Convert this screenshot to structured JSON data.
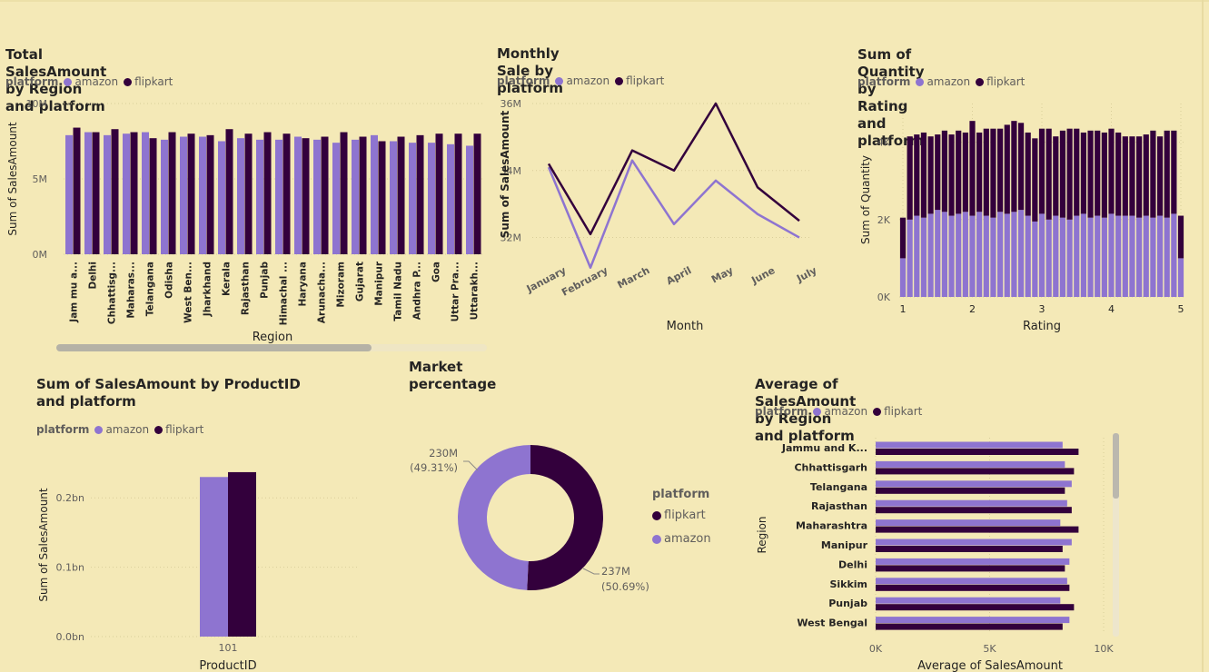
{
  "colors": {
    "amazon": "#8E74D0",
    "flipkart": "#33003C",
    "background": "#F4E9B7"
  },
  "legend_title": "platform",
  "legend_items": [
    "amazon",
    "flipkart"
  ],
  "charts": {
    "region_total": {
      "title": "Total SalesAmount by Region and platform"
    },
    "monthly": {
      "title": "Monthly Sale by platform"
    },
    "rating": {
      "title": "Sum of Quantity by Rating and platform"
    },
    "product": {
      "title": "Sum of SalesAmount by ProductID and platform"
    },
    "market": {
      "title": "Market percentage",
      "legend_items": [
        "flipkart",
        "amazon"
      ]
    },
    "avg_region": {
      "title": "Average of SalesAmount by Region and platform"
    }
  },
  "chart_data": [
    {
      "id": "region_total",
      "type": "bar",
      "title": "Total SalesAmount by Region and platform",
      "xlabel": "Region",
      "ylabel": "Sum of SalesAmount",
      "ylim": [
        0,
        10000000
      ],
      "yticks": [
        0,
        5000000,
        10000000
      ],
      "ytick_labels": [
        "0M",
        "5M",
        "10M"
      ],
      "categories": [
        "Jam mu a...",
        "Delhi",
        "Chhattisg...",
        "Maharas...",
        "Telangana",
        "Odisha",
        "West Ben...",
        "Jharkhand",
        "Kerala",
        "Rajasthan",
        "Punjab",
        "Himachal ...",
        "Haryana",
        "Arunacha...",
        "Mizoram",
        "Gujarat",
        "Manipur",
        "Tamil Nadu",
        "Andhra P...",
        "Goa",
        "Uttar Pra...",
        "Uttarakh..."
      ],
      "series": [
        {
          "name": "amazon",
          "values": [
            7900000,
            8100000,
            7900000,
            8000000,
            8100000,
            7600000,
            7800000,
            7800000,
            7500000,
            7700000,
            7600000,
            7600000,
            7800000,
            7600000,
            7400000,
            7600000,
            7900000,
            7500000,
            7400000,
            7400000,
            7300000,
            7200000
          ]
        },
        {
          "name": "flipkart",
          "values": [
            8400000,
            8100000,
            8300000,
            8100000,
            7700000,
            8100000,
            8000000,
            7900000,
            8300000,
            8000000,
            8100000,
            8000000,
            7700000,
            7800000,
            8100000,
            7800000,
            7500000,
            7800000,
            7900000,
            8000000,
            8000000,
            8000000
          ]
        }
      ]
    },
    {
      "id": "monthly",
      "type": "line",
      "title": "Monthly Sale by platform",
      "xlabel": "Month",
      "ylabel": "Sum of SalesAmount",
      "ylim": [
        31500000,
        36000000
      ],
      "yticks": [
        32000000,
        34000000,
        36000000
      ],
      "ytick_labels": [
        "32M",
        "34M",
        "36M"
      ],
      "categories": [
        "January",
        "February",
        "March",
        "April",
        "May",
        "June",
        "July"
      ],
      "series": [
        {
          "name": "amazon",
          "values": [
            34100000,
            31100000,
            34300000,
            32400000,
            33700000,
            32700000,
            32000000
          ]
        },
        {
          "name": "flipkart",
          "values": [
            34200000,
            32100000,
            34600000,
            34000000,
            36000000,
            33500000,
            32500000
          ]
        }
      ]
    },
    {
      "id": "rating",
      "type": "bar",
      "stacked": true,
      "title": "Sum of Quantity by Rating and platform",
      "xlabel": "Rating",
      "ylabel": "Sum of Quantity",
      "xlim": [
        1,
        5
      ],
      "ylim": [
        0,
        5000
      ],
      "yticks": [
        0,
        2000,
        4000
      ],
      "ytick_labels": [
        "0K",
        "2K",
        "4K"
      ],
      "xticks": [
        1,
        2,
        3,
        4,
        5
      ],
      "x": [
        1.0,
        1.1,
        1.2,
        1.3,
        1.4,
        1.5,
        1.6,
        1.7,
        1.8,
        1.9,
        2.0,
        2.1,
        2.2,
        2.3,
        2.4,
        2.5,
        2.6,
        2.7,
        2.8,
        2.9,
        3.0,
        3.1,
        3.2,
        3.3,
        3.4,
        3.5,
        3.6,
        3.7,
        3.8,
        3.9,
        4.0,
        4.1,
        4.2,
        4.3,
        4.4,
        4.5,
        4.6,
        4.7,
        4.8,
        4.9,
        5.0
      ],
      "series": [
        {
          "name": "amazon",
          "values": [
            1000,
            2000,
            2100,
            2050,
            2150,
            2250,
            2200,
            2100,
            2150,
            2200,
            2100,
            2200,
            2100,
            2050,
            2200,
            2150,
            2200,
            2250,
            2100,
            1950,
            2150,
            2000,
            2100,
            2050,
            2000,
            2100,
            2150,
            2050,
            2100,
            2050,
            2150,
            2100,
            2100,
            2100,
            2050,
            2100,
            2050,
            2100,
            2050,
            2150,
            1000
          ]
        },
        {
          "name": "flipkart",
          "values": [
            1050,
            2150,
            2100,
            2200,
            2000,
            1950,
            2100,
            2100,
            2150,
            2050,
            2450,
            2050,
            2250,
            2300,
            2150,
            2300,
            2350,
            2250,
            2150,
            2150,
            2200,
            2350,
            2050,
            2250,
            2350,
            2250,
            2100,
            2250,
            2200,
            2200,
            2200,
            2150,
            2050,
            2050,
            2100,
            2100,
            2250,
            2050,
            2250,
            2150,
            1100
          ]
        }
      ]
    },
    {
      "id": "product",
      "type": "bar",
      "title": "Sum of SalesAmount by ProductID and platform",
      "xlabel": "ProductID",
      "ylabel": "Sum of SalesAmount",
      "ylim": [
        0,
        0.25
      ],
      "yticks": [
        0,
        0.1,
        0.2
      ],
      "ytick_labels": [
        "0.0bn",
        "0.1bn",
        "0.2bn"
      ],
      "categories": [
        "101"
      ],
      "series": [
        {
          "name": "amazon",
          "values": [
            0.23
          ]
        },
        {
          "name": "flipkart",
          "values": [
            0.237
          ]
        }
      ]
    },
    {
      "id": "market",
      "type": "pie",
      "title": "Market percentage",
      "categories": [
        "flipkart",
        "amazon"
      ],
      "values": [
        237,
        230
      ],
      "labels": [
        {
          "name": "flipkart",
          "value": "237M",
          "percent": "(50.69%)"
        },
        {
          "name": "amazon",
          "value": "230M",
          "percent": "(49.31%)"
        }
      ]
    },
    {
      "id": "avg_region",
      "type": "bar",
      "orientation": "horizontal",
      "title": "Average of SalesAmount by Region and platform",
      "xlabel": "Average of SalesAmount",
      "ylabel": "Region",
      "xlim": [
        0,
        10000
      ],
      "xticks": [
        0,
        5000,
        10000
      ],
      "xtick_labels": [
        "0K",
        "5K",
        "10K"
      ],
      "categories": [
        "Jammu and K...",
        "Chhattisgarh",
        "Telangana",
        "Rajasthan",
        "Maharashtra",
        "Manipur",
        "Delhi",
        "Sikkim",
        "Punjab",
        "West Bengal"
      ],
      "series": [
        {
          "name": "amazon",
          "values": [
            8200,
            8300,
            8600,
            8400,
            8100,
            8600,
            8500,
            8400,
            8100,
            8500
          ]
        },
        {
          "name": "flipkart",
          "values": [
            8900,
            8700,
            8300,
            8600,
            8900,
            8200,
            8300,
            8500,
            8700,
            8200
          ]
        }
      ]
    }
  ]
}
